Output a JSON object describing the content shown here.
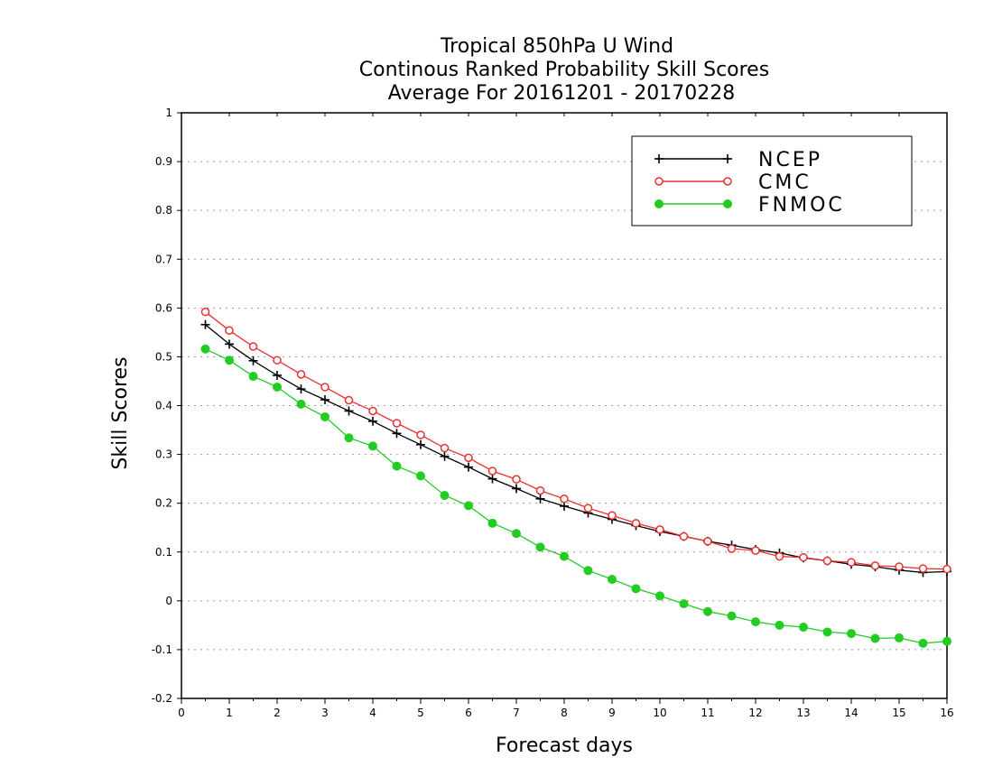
{
  "chart_data": {
    "type": "line",
    "title_lines": [
      "Tropical 850hPa U Wind",
      "Continous Ranked Probability Skill Scores",
      "Average For 20161201 - 20170228"
    ],
    "xlabel": "Forecast days",
    "ylabel": "Skill Scores",
    "xlim": [
      0,
      16
    ],
    "ylim": [
      -0.2,
      1
    ],
    "x_ticks": [
      0,
      1,
      2,
      3,
      4,
      5,
      6,
      7,
      8,
      9,
      10,
      11,
      12,
      13,
      14,
      15,
      16
    ],
    "y_ticks": [
      -0.2,
      -0.1,
      0,
      0.1,
      0.2,
      0.3,
      0.4,
      0.5,
      0.6,
      0.7,
      0.8,
      0.9,
      1
    ],
    "y_tick_labels": [
      "-0.2",
      "-0.1",
      "0",
      "0.1",
      "0.2",
      "0.3",
      "0.4",
      "0.5",
      "0.6",
      "0.7",
      "0.8",
      "0.9",
      "1"
    ],
    "grid": "horizontal dotted",
    "legend_position": "top-right",
    "x": [
      0.5,
      1,
      1.5,
      2,
      2.5,
      3,
      3.5,
      4,
      4.5,
      5,
      5.5,
      6,
      6.5,
      7,
      7.5,
      8,
      8.5,
      9,
      9.5,
      10,
      10.5,
      11,
      11.5,
      12,
      12.5,
      13,
      13.5,
      14,
      14.5,
      15,
      15.5,
      16
    ],
    "series": [
      {
        "name": "NCEP",
        "color": "#000000",
        "marker": "plus",
        "values": [
          0.566,
          0.526,
          0.492,
          0.462,
          0.434,
          0.412,
          0.389,
          0.368,
          0.343,
          0.32,
          0.296,
          0.274,
          0.25,
          0.23,
          0.209,
          0.194,
          0.18,
          0.167,
          0.154,
          0.142,
          0.132,
          0.122,
          0.114,
          0.105,
          0.098,
          0.088,
          0.082,
          0.075,
          0.07,
          0.063,
          0.058,
          0.06
        ]
      },
      {
        "name": "CMC",
        "color": "#e83030",
        "marker": "open-circle",
        "values": [
          0.592,
          0.554,
          0.521,
          0.493,
          0.464,
          0.438,
          0.411,
          0.389,
          0.364,
          0.34,
          0.313,
          0.293,
          0.266,
          0.249,
          0.226,
          0.209,
          0.19,
          0.175,
          0.159,
          0.146,
          0.132,
          0.122,
          0.107,
          0.103,
          0.091,
          0.089,
          0.082,
          0.079,
          0.072,
          0.07,
          0.066,
          0.065
        ]
      },
      {
        "name": "FNMOC",
        "color": "#22cc22",
        "marker": "filled-circle",
        "values": [
          0.516,
          0.493,
          0.46,
          0.438,
          0.403,
          0.377,
          0.334,
          0.317,
          0.276,
          0.256,
          0.216,
          0.195,
          0.159,
          0.138,
          0.11,
          0.091,
          0.062,
          0.044,
          0.025,
          0.01,
          -0.006,
          -0.022,
          -0.031,
          -0.043,
          -0.05,
          -0.054,
          -0.064,
          -0.067,
          -0.077,
          -0.076,
          -0.087,
          -0.083
        ]
      }
    ]
  }
}
